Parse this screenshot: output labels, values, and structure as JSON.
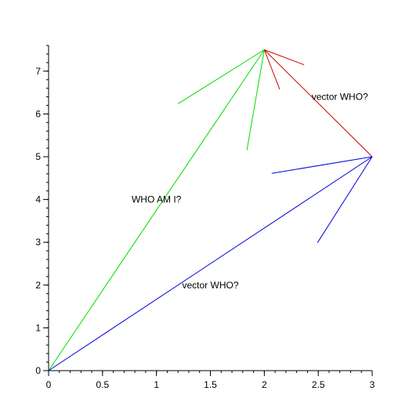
{
  "chart_data": {
    "type": "line",
    "title": "",
    "xlabel": "",
    "ylabel": "",
    "xlim": [
      0,
      3
    ],
    "ylim": [
      0,
      7.6
    ],
    "x_ticks": [
      0,
      0.5,
      1,
      1.5,
      2,
      2.5,
      3
    ],
    "x_tick_labels": [
      "0",
      "0.5",
      "1",
      "1.5",
      "2",
      "2.5",
      "3"
    ],
    "y_ticks": [
      0,
      1,
      2,
      3,
      4,
      5,
      6,
      7
    ],
    "y_tick_labels": [
      "0",
      "1",
      "2",
      "3",
      "4",
      "5",
      "6",
      "7"
    ],
    "grid": false,
    "vectors": [
      {
        "from": [
          0,
          0
        ],
        "to": [
          2,
          7.5
        ],
        "color": "#00dd00"
      },
      {
        "from": [
          0,
          0
        ],
        "to": [
          3,
          5
        ],
        "color": "#0000dd"
      },
      {
        "from": [
          3,
          5
        ],
        "to": [
          2,
          7.5
        ],
        "color": "#cc0000"
      }
    ],
    "annotations": [
      {
        "text": "WHO AM I?",
        "x": 1.0,
        "y": 4.0
      },
      {
        "text": "vector WHO?",
        "x": 1.5,
        "y": 2.0
      },
      {
        "text": "vector WHO?",
        "x": 2.7,
        "y": 6.4
      }
    ]
  }
}
